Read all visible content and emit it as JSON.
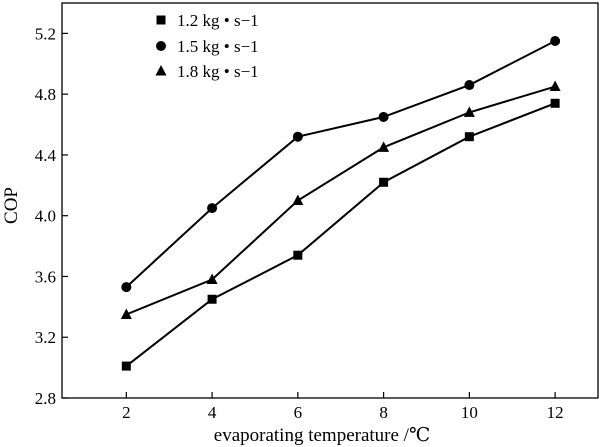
{
  "chart_data": {
    "type": "line",
    "title": "",
    "xlabel": "evaporating temperature /℃",
    "ylabel": "COP",
    "x": [
      2,
      4,
      6,
      8,
      10,
      12
    ],
    "xlim": [
      0.5,
      13.0
    ],
    "ylim": [
      2.8,
      5.4
    ],
    "xticks": [
      2,
      4,
      6,
      8,
      10,
      12
    ],
    "yticks": [
      2.8,
      3.2,
      3.6,
      4.0,
      4.4,
      4.8,
      5.2
    ],
    "ytick_labels": [
      "2.8",
      "3.2",
      "3.6",
      "4.0",
      "4.4",
      "4.8",
      "5.2"
    ],
    "grid": false,
    "legend_position": "top-left",
    "series": [
      {
        "name": "1.2 kg • s−1",
        "marker": "square",
        "values": [
          3.01,
          3.45,
          3.74,
          4.22,
          4.52,
          4.74
        ]
      },
      {
        "name": "1.5 kg • s−1",
        "marker": "circle",
        "values": [
          3.53,
          4.05,
          4.52,
          4.65,
          4.86,
          5.15
        ]
      },
      {
        "name": "1.8 kg • s−1",
        "marker": "triangle",
        "values": [
          3.35,
          3.58,
          4.1,
          4.45,
          4.68,
          4.85
        ]
      }
    ]
  }
}
